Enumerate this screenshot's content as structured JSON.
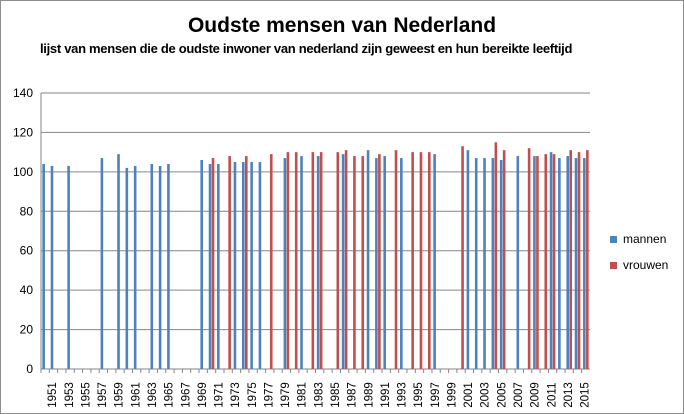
{
  "chart_data": {
    "type": "bar",
    "title": "Oudste mensen van Nederland",
    "subtitle": "lijst van mensen die de oudste inwoner van nederland zijn geweest en hun bereikte leeftijd",
    "xlabel": "",
    "ylabel": "",
    "ylim": [
      0,
      140
    ],
    "yticks": [
      "0",
      "20",
      "40",
      "60",
      "80",
      "100",
      "120",
      "140"
    ],
    "grid": true,
    "legend_position": "right",
    "x_start_year": 1951,
    "x_end_year": 2016,
    "series": [
      {
        "name": "mannen",
        "color": "#4F81BD",
        "values": {
          "1951": 104,
          "1952": 103,
          "1954": 103,
          "1958": 107,
          "1960": 109,
          "1961": 102,
          "1962": 103,
          "1964": 104,
          "1965": 103,
          "1966": 104,
          "1970": 106,
          "1971": 104,
          "1972": 104,
          "1974": 105,
          "1975": 105,
          "1976": 105,
          "1977": 105,
          "1980": 107,
          "1982": 108,
          "1984": 108,
          "1987": 109,
          "1990": 111,
          "1991": 107,
          "1992": 108,
          "1994": 107,
          "1998": 109,
          "2002": 111,
          "2003": 107,
          "2004": 107,
          "2005": 107,
          "2006": 106,
          "2008": 108,
          "2010": 108,
          "2012": 110,
          "2013": 107,
          "2014": 108,
          "2015": 107,
          "2016": 107
        }
      },
      {
        "name": "vrouwen",
        "color": "#C0504D",
        "values": {
          "1971": 107,
          "1973": 108,
          "1975": 108,
          "1978": 109,
          "1980": 110,
          "1981": 110,
          "1983": 110,
          "1984": 110,
          "1986": 110,
          "1987": 111,
          "1988": 108,
          "1989": 108,
          "1991": 109,
          "1993": 111,
          "1995": 110,
          "1996": 110,
          "1997": 110,
          "2001": 113,
          "2005": 115,
          "2006": 111,
          "2009": 112,
          "2010": 108,
          "2011": 109,
          "2012": 109,
          "2014": 111,
          "2015": 110,
          "2016": 111
        }
      }
    ]
  }
}
